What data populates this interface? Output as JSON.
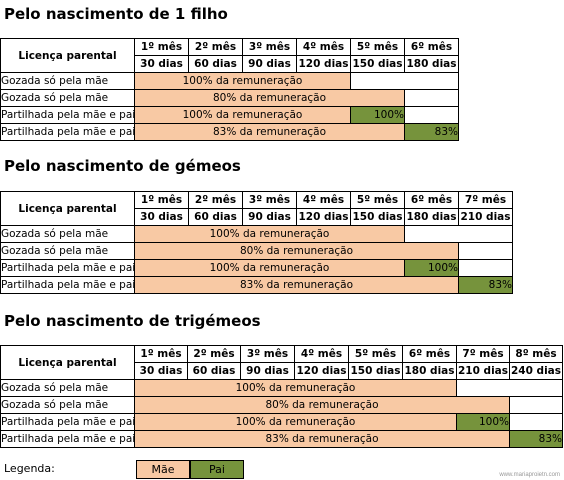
{
  "section1": {
    "title": "Pelo nascimento de 1 filho",
    "header_label": "Licença parental",
    "months": [
      "1º mês",
      "2º mês",
      "3º mês",
      "4º mês",
      "5º mês",
      "6º mês"
    ],
    "days": [
      "30 dias",
      "60 dias",
      "90 dias",
      "120 dias",
      "150 dias",
      "180 dias"
    ],
    "rows": [
      {
        "label": "Gozada só pela mãe",
        "mae": "100% da remuneração",
        "pai": ""
      },
      {
        "label": "Gozada só pela mãe",
        "mae": "80% da remuneração",
        "pai": ""
      },
      {
        "label": "Partilhada pela mãe e pai",
        "mae": "100% da remuneração",
        "pai": "100%"
      },
      {
        "label": "Partilhada pela mãe e pai",
        "mae": "83% da remuneração",
        "pai": "83%"
      }
    ]
  },
  "section2": {
    "title": "Pelo nascimento de  gémeos",
    "header_label": "Licença parental",
    "months": [
      "1º mês",
      "2º mês",
      "3º mês",
      "4º mês",
      "5º mês",
      "6º mês",
      "7º mês"
    ],
    "days": [
      "30 dias",
      "60 dias",
      "90 dias",
      "120 dias",
      "150 dias",
      "180 dias",
      "210 dias"
    ],
    "rows": [
      {
        "label": "Gozada só pela mãe",
        "mae": "100% da remuneração",
        "pai": ""
      },
      {
        "label": "Gozada só pela mãe",
        "mae": "80% da remuneração",
        "pai": ""
      },
      {
        "label": "Partilhada pela mãe e pai",
        "mae": "100% da remuneração",
        "pai": "100%"
      },
      {
        "label": "Partilhada pela mãe e pai",
        "mae": "83% da remuneração",
        "pai": "83%"
      }
    ]
  },
  "section3": {
    "title": "Pelo nascimento de trigémeos",
    "header_label": "Licença parental",
    "months": [
      "1º mês",
      "2º mês",
      "3º mês",
      "4º mês",
      "5º mês",
      "6º mês",
      "7º mês",
      "8º mês"
    ],
    "days": [
      "30 dias",
      "60 dias",
      "90 dias",
      "120 dias",
      "150 dias",
      "180 dias",
      "210 dias",
      "240 dias"
    ],
    "rows": [
      {
        "label": "Gozada só pela mãe",
        "mae": "100% da remuneração",
        "pai": ""
      },
      {
        "label": "Gozada só pela mãe",
        "mae": "80% da remuneração",
        "pai": ""
      },
      {
        "label": "Partilhada pela mãe e pai",
        "mae": "100% da remuneração",
        "pai": "100%"
      },
      {
        "label": "Partilhada pela mãe e pai",
        "mae": "83% da remuneração",
        "pai": "83%"
      }
    ]
  },
  "legend": {
    "label": "Legenda:",
    "mae": "Mãe",
    "pai": "Pai"
  },
  "colors": {
    "mae": "#f8c9a4",
    "pai": "#76933c"
  },
  "watermark": "www.mariaproietn.com"
}
